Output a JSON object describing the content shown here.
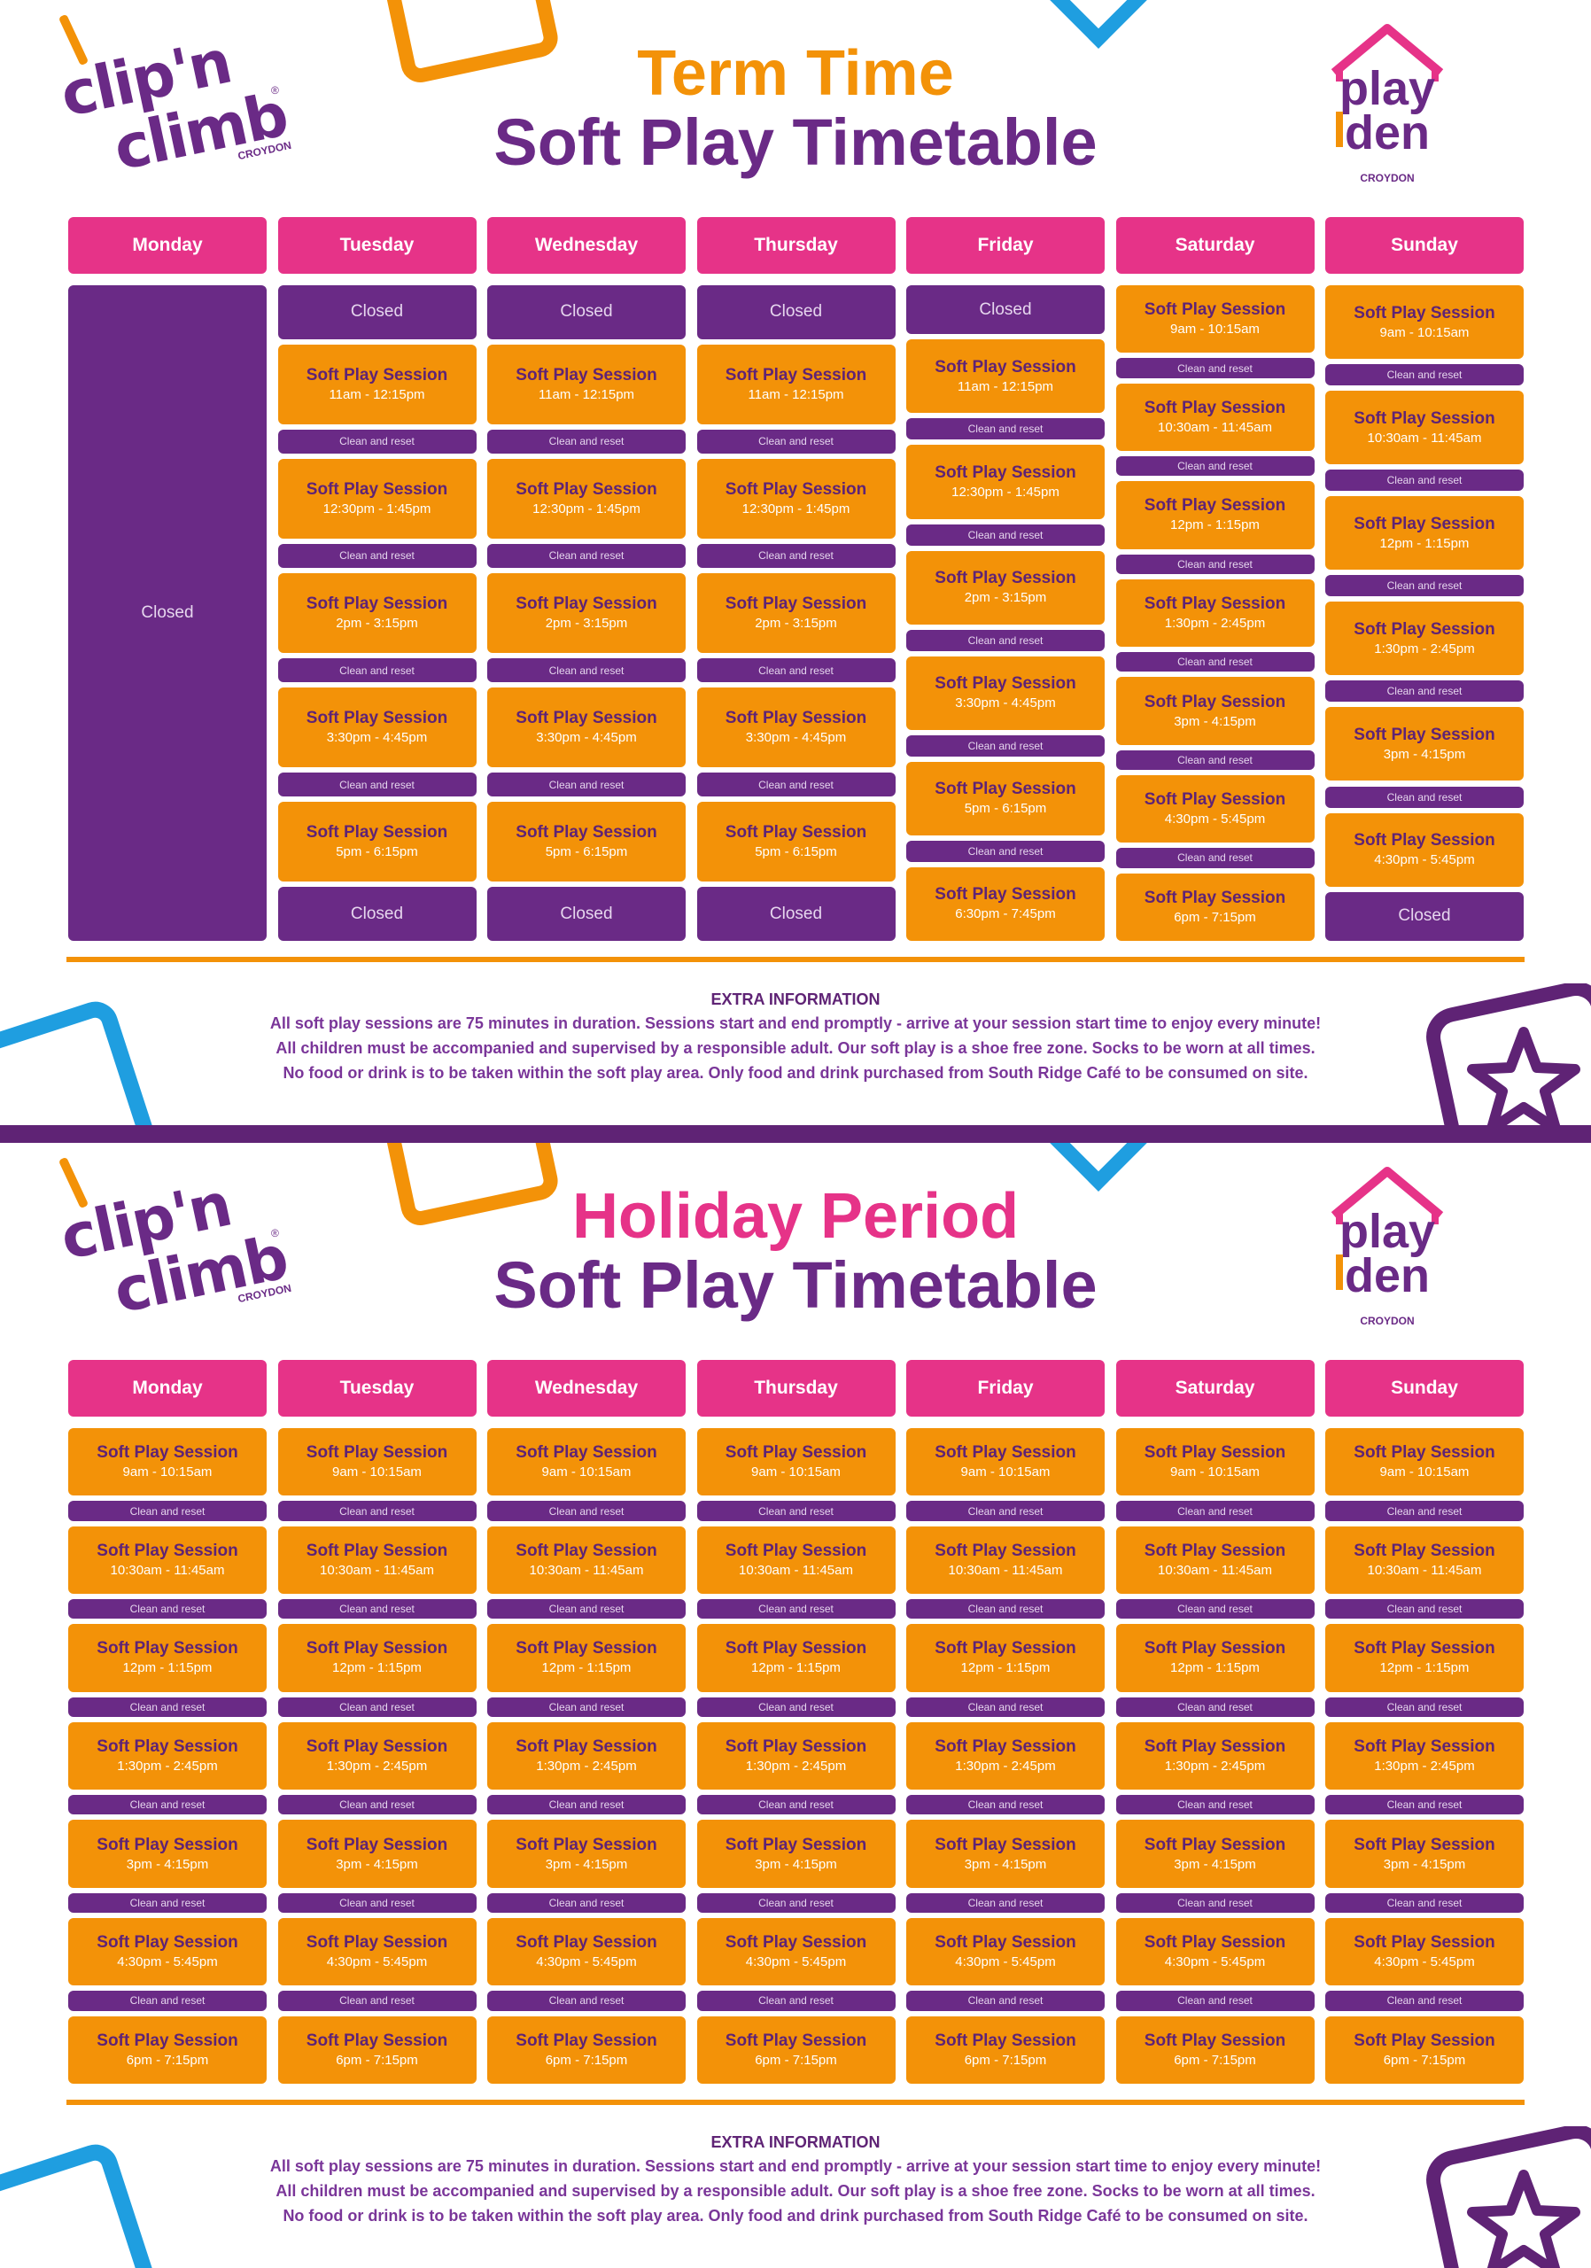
{
  "colors": {
    "purple": "#6a2a86",
    "orange": "#f39208",
    "pink": "#e63388",
    "blue": "#1f9ee0"
  },
  "days": [
    "Monday",
    "Tuesday",
    "Wednesday",
    "Thursday",
    "Friday",
    "Saturday",
    "Sunday"
  ],
  "brand": {
    "cnc_line1": "clip'n",
    "cnc_line2": "climb",
    "cnc_sub": "CROYDON",
    "cnc_reg": "®",
    "pd_line1": "play",
    "pd_line2": "den",
    "pd_sub": "CROYDON"
  },
  "labels": {
    "session": "Soft Play Session",
    "clean": "Clean and reset",
    "closed": "Closed"
  },
  "extra": {
    "heading": "EXTRA INFORMATION",
    "line1": "All soft play sessions are 75 minutes in duration.  Sessions start and end promptly - arrive at your session start time to enjoy every minute!",
    "line2": "All children must be accompanied and supervised by a responsible adult. Our soft play is a shoe free zone. Socks to be worn at all times.",
    "line3": "No food or drink is to be taken within the soft play area. Only food and drink purchased from South Ridge Café to be consumed on site."
  },
  "term": {
    "title_line1": "Term Time",
    "title_line2": "Soft Play Timetable",
    "columns": [
      {
        "items": [
          {
            "type": "closed"
          }
        ]
      },
      {
        "items": [
          {
            "type": "closed"
          },
          {
            "type": "session",
            "time": "11am - 12:15pm"
          },
          {
            "type": "clean"
          },
          {
            "type": "session",
            "time": "12:30pm - 1:45pm"
          },
          {
            "type": "clean"
          },
          {
            "type": "session",
            "time": "2pm - 3:15pm"
          },
          {
            "type": "clean"
          },
          {
            "type": "session",
            "time": "3:30pm - 4:45pm"
          },
          {
            "type": "clean"
          },
          {
            "type": "session",
            "time": "5pm - 6:15pm"
          },
          {
            "type": "closed"
          }
        ]
      },
      {
        "items": [
          {
            "type": "closed"
          },
          {
            "type": "session",
            "time": "11am - 12:15pm"
          },
          {
            "type": "clean"
          },
          {
            "type": "session",
            "time": "12:30pm - 1:45pm"
          },
          {
            "type": "clean"
          },
          {
            "type": "session",
            "time": "2pm - 3:15pm"
          },
          {
            "type": "clean"
          },
          {
            "type": "session",
            "time": "3:30pm - 4:45pm"
          },
          {
            "type": "clean"
          },
          {
            "type": "session",
            "time": "5pm - 6:15pm"
          },
          {
            "type": "closed"
          }
        ]
      },
      {
        "items": [
          {
            "type": "closed"
          },
          {
            "type": "session",
            "time": "11am - 12:15pm"
          },
          {
            "type": "clean"
          },
          {
            "type": "session",
            "time": "12:30pm - 1:45pm"
          },
          {
            "type": "clean"
          },
          {
            "type": "session",
            "time": "2pm - 3:15pm"
          },
          {
            "type": "clean"
          },
          {
            "type": "session",
            "time": "3:30pm - 4:45pm"
          },
          {
            "type": "clean"
          },
          {
            "type": "session",
            "time": "5pm - 6:15pm"
          },
          {
            "type": "closed"
          }
        ]
      },
      {
        "items": [
          {
            "type": "closed"
          },
          {
            "type": "session",
            "time": "11am - 12:15pm"
          },
          {
            "type": "clean"
          },
          {
            "type": "session",
            "time": "12:30pm - 1:45pm"
          },
          {
            "type": "clean"
          },
          {
            "type": "session",
            "time": "2pm - 3:15pm"
          },
          {
            "type": "clean"
          },
          {
            "type": "session",
            "time": "3:30pm - 4:45pm"
          },
          {
            "type": "clean"
          },
          {
            "type": "session",
            "time": "5pm - 6:15pm"
          },
          {
            "type": "clean"
          },
          {
            "type": "session",
            "time": "6:30pm - 7:45pm"
          }
        ]
      },
      {
        "items": [
          {
            "type": "session",
            "time": "9am - 10:15am"
          },
          {
            "type": "clean"
          },
          {
            "type": "session",
            "time": "10:30am - 11:45am"
          },
          {
            "type": "clean"
          },
          {
            "type": "session",
            "time": "12pm - 1:15pm"
          },
          {
            "type": "clean"
          },
          {
            "type": "session",
            "time": "1:30pm - 2:45pm"
          },
          {
            "type": "clean"
          },
          {
            "type": "session",
            "time": "3pm - 4:15pm"
          },
          {
            "type": "clean"
          },
          {
            "type": "session",
            "time": "4:30pm - 5:45pm"
          },
          {
            "type": "clean"
          },
          {
            "type": "session",
            "time": "6pm - 7:15pm"
          }
        ]
      },
      {
        "items": [
          {
            "type": "session",
            "time": "9am - 10:15am"
          },
          {
            "type": "clean"
          },
          {
            "type": "session",
            "time": "10:30am - 11:45am"
          },
          {
            "type": "clean"
          },
          {
            "type": "session",
            "time": "12pm - 1:15pm"
          },
          {
            "type": "clean"
          },
          {
            "type": "session",
            "time": "1:30pm - 2:45pm"
          },
          {
            "type": "clean"
          },
          {
            "type": "session",
            "time": "3pm - 4:15pm"
          },
          {
            "type": "clean"
          },
          {
            "type": "session",
            "time": "4:30pm - 5:45pm"
          },
          {
            "type": "closed"
          }
        ]
      }
    ]
  },
  "holiday": {
    "title_line1": "Holiday Period",
    "title_line2": "Soft Play Timetable",
    "times": [
      "9am - 10:15am",
      "10:30am - 11:45am",
      "12pm - 1:15pm",
      "1:30pm - 2:45pm",
      "3pm - 4:15pm",
      "4:30pm - 5:45pm",
      "6pm - 7:15pm"
    ]
  }
}
